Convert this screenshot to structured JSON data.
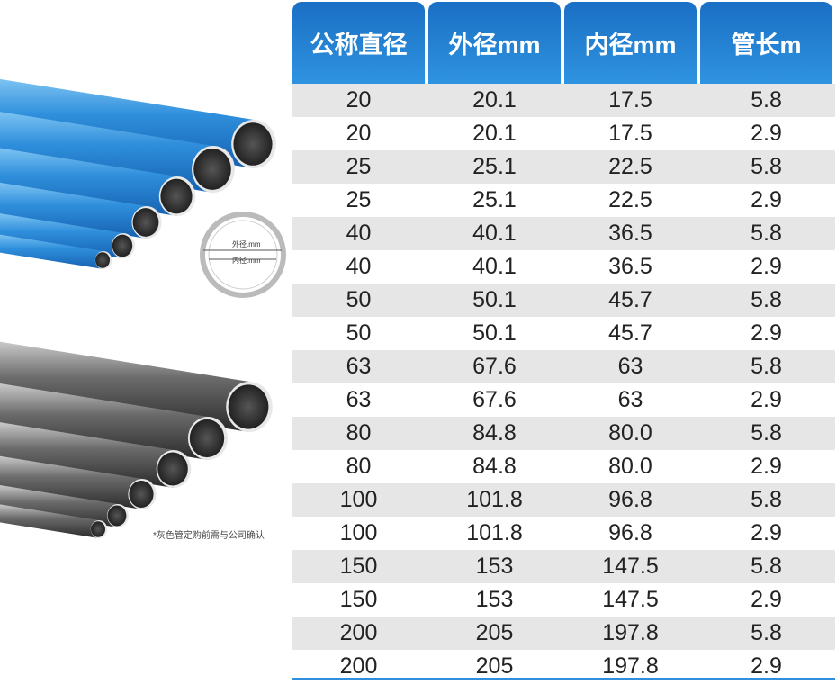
{
  "image_labels": {
    "outer": "外径.mm",
    "inner": "内径.mm",
    "note": "*灰色管定购前需与公司确认"
  },
  "table": {
    "headers": [
      "公称直径",
      "外径mm",
      "内径mm",
      "管长m"
    ],
    "rows": [
      [
        "20",
        "20.1",
        "17.5",
        "5.8"
      ],
      [
        "20",
        "20.1",
        "17.5",
        "2.9"
      ],
      [
        "25",
        "25.1",
        "22.5",
        "5.8"
      ],
      [
        "25",
        "25.1",
        "22.5",
        "2.9"
      ],
      [
        "40",
        "40.1",
        "36.5",
        "5.8"
      ],
      [
        "40",
        "40.1",
        "36.5",
        "2.9"
      ],
      [
        "50",
        "50.1",
        "45.7",
        "5.8"
      ],
      [
        "50",
        "50.1",
        "45.7",
        "2.9"
      ],
      [
        "63",
        "67.6",
        "63",
        "5.8"
      ],
      [
        "63",
        "67.6",
        "63",
        "2.9"
      ],
      [
        "80",
        "84.8",
        "80.0",
        "5.8"
      ],
      [
        "80",
        "84.8",
        "80.0",
        "2.9"
      ],
      [
        "100",
        "101.8",
        "96.8",
        "5.8"
      ],
      [
        "100",
        "101.8",
        "96.8",
        "2.9"
      ],
      [
        "150",
        "153",
        "147.5",
        "5.8"
      ],
      [
        "150",
        "153",
        "147.5",
        "2.9"
      ],
      [
        "200",
        "205",
        "197.8",
        "5.8"
      ],
      [
        "200",
        "205",
        "197.8",
        "2.9"
      ]
    ]
  }
}
